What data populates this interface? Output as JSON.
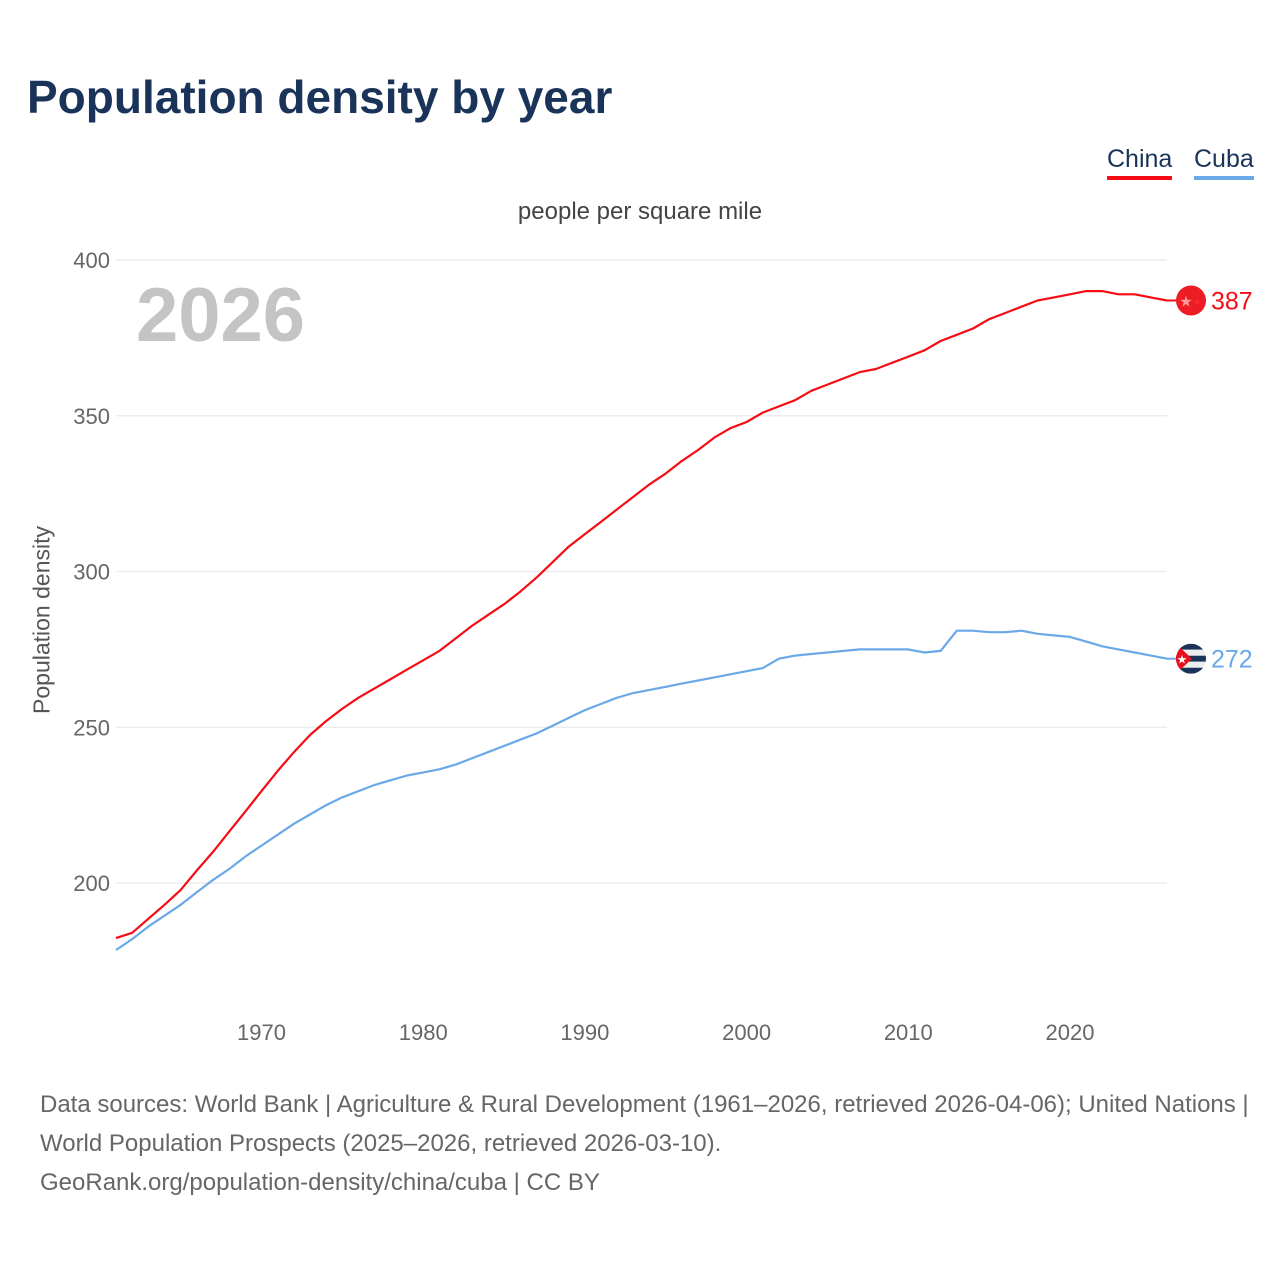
{
  "title": "Population density by year",
  "subtitle": "people per square mile",
  "current_year": "2026",
  "footer": {
    "sources": "Data sources: World Bank | Agriculture & Rural Development (1961–2026, retrieved 2026-04-06); United Nations | World Population Prospects (2025–2026, retrieved 2026-03-10).",
    "credit": "GeoRank.org/population-density/china/cuba | CC BY"
  },
  "chart_data": {
    "type": "line",
    "title": "Population density by year",
    "subtitle": "people per square mile",
    "xlabel": "",
    "ylabel": "Population density",
    "xlim": [
      1961,
      2026
    ],
    "ylim": [
      175,
      400
    ],
    "yticks": [
      200,
      250,
      300,
      350,
      400
    ],
    "xticks": [
      1970,
      1980,
      1990,
      2000,
      2010,
      2020
    ],
    "grid": true,
    "legend": "top-right",
    "x_start": 1961,
    "series": [
      {
        "name": "China",
        "color": "#f50c14",
        "end_label": "387",
        "flag": "china-flag",
        "values": [
          182.3,
          184,
          188.5,
          193,
          197.8,
          204,
          210,
          216.5,
          223,
          229.5,
          236,
          242,
          247.5,
          252,
          256,
          259.5,
          262.5,
          265.5,
          268.5,
          271.5,
          274.5,
          278.5,
          282.5,
          286,
          289.5,
          293.5,
          298,
          303,
          308,
          312,
          316,
          320,
          324,
          328,
          331.5,
          335.5,
          339,
          343,
          346,
          348,
          351,
          353,
          355,
          358,
          360,
          362,
          364,
          365,
          367,
          369,
          371,
          374,
          376,
          378,
          381,
          383,
          385,
          387,
          388,
          389,
          390,
          390,
          389,
          389,
          388,
          387
        ]
      },
      {
        "name": "Cuba",
        "color": "#6aa8e8",
        "end_label": "272",
        "flag": "cuba-flag",
        "values": [
          178.5,
          182,
          186,
          189.5,
          193,
          197,
          201,
          204.5,
          208.5,
          212,
          215.5,
          219,
          222,
          225,
          227.5,
          229.5,
          231.5,
          233,
          234.5,
          235.5,
          236.5,
          238,
          240,
          242,
          244,
          246,
          248,
          250.5,
          253,
          255.5,
          257.5,
          259.5,
          261,
          262,
          263,
          264,
          265,
          266,
          267,
          268,
          269,
          272,
          273,
          273.5,
          274,
          274.5,
          275,
          275,
          275,
          275,
          274,
          274.5,
          281,
          281,
          280.5,
          280.5,
          281,
          280,
          279.5,
          279,
          277.5,
          276,
          275,
          274,
          273,
          272
        ]
      }
    ]
  }
}
